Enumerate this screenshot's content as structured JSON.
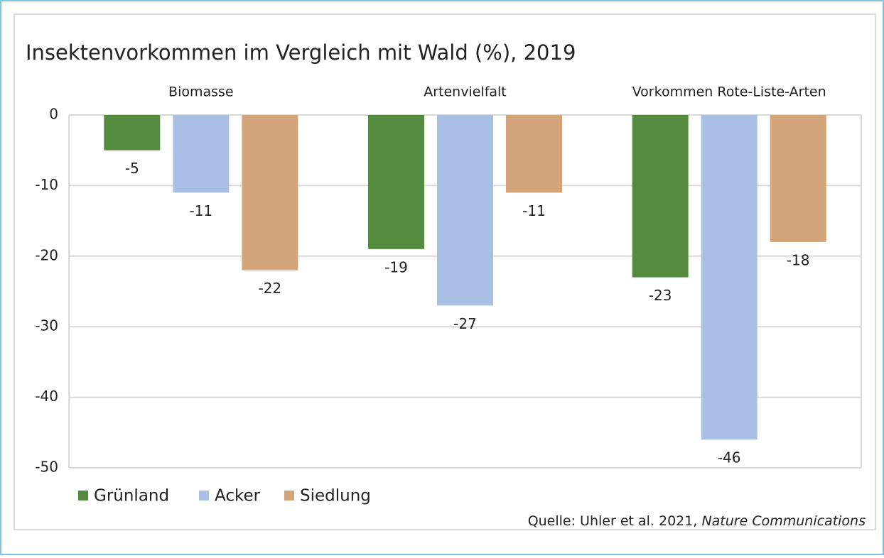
{
  "chart_data": {
    "type": "bar",
    "title": "Insektenvorkommen im Vergleich mit Wald (%), 2019",
    "categories": [
      "Biomasse",
      "Artenvielfalt",
      "Vorkommen Rote-Liste-Arten"
    ],
    "series": [
      {
        "name": "Grünland",
        "color": "#548b3f",
        "values": [
          -5,
          -19,
          -23
        ]
      },
      {
        "name": "Acker",
        "color": "#a9c0e4",
        "values": [
          -11,
          -27,
          -46
        ]
      },
      {
        "name": "Siedlung",
        "color": "#d4a47b",
        "values": [
          -22,
          -11,
          -18
        ]
      }
    ],
    "ylim": [
      -50,
      0
    ],
    "yticks": [
      0,
      -10,
      -20,
      -30,
      -40,
      -50
    ],
    "grid": true,
    "source": "Quelle: Uhler et al. 2021,",
    "source_journal": "Nature Communications"
  }
}
